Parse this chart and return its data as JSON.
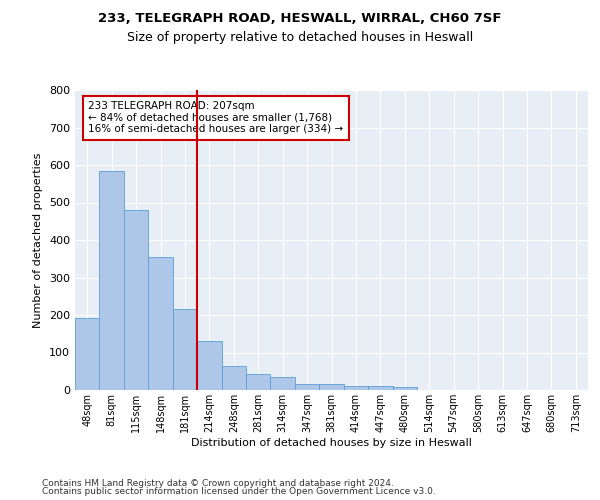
{
  "title1": "233, TELEGRAPH ROAD, HESWALL, WIRRAL, CH60 7SF",
  "title2": "Size of property relative to detached houses in Heswall",
  "xlabel": "Distribution of detached houses by size in Heswall",
  "ylabel": "Number of detached properties",
  "bar_labels": [
    "48sqm",
    "81sqm",
    "115sqm",
    "148sqm",
    "181sqm",
    "214sqm",
    "248sqm",
    "281sqm",
    "314sqm",
    "347sqm",
    "381sqm",
    "414sqm",
    "447sqm",
    "480sqm",
    "514sqm",
    "547sqm",
    "580sqm",
    "613sqm",
    "647sqm",
    "680sqm",
    "713sqm"
  ],
  "bar_values": [
    192,
    585,
    480,
    355,
    215,
    130,
    63,
    42,
    35,
    17,
    16,
    10,
    12,
    7,
    0,
    0,
    0,
    0,
    0,
    0,
    0
  ],
  "bar_color": "#aec6e8",
  "bar_edge_color": "#5a9fd4",
  "background_color": "#e8eef5",
  "grid_color": "#ffffff",
  "vline_x_index": 4,
  "vline_color": "#cc0000",
  "annotation_text": "233 TELEGRAPH ROAD: 207sqm\n← 84% of detached houses are smaller (1,768)\n16% of semi-detached houses are larger (334) →",
  "annotation_box_color": "#ffffff",
  "annotation_box_edge": "#cc0000",
  "ylim": [
    0,
    800
  ],
  "yticks": [
    0,
    100,
    200,
    300,
    400,
    500,
    600,
    700,
    800
  ],
  "footer1": "Contains HM Land Registry data © Crown copyright and database right 2024.",
  "footer2": "Contains public sector information licensed under the Open Government Licence v3.0."
}
